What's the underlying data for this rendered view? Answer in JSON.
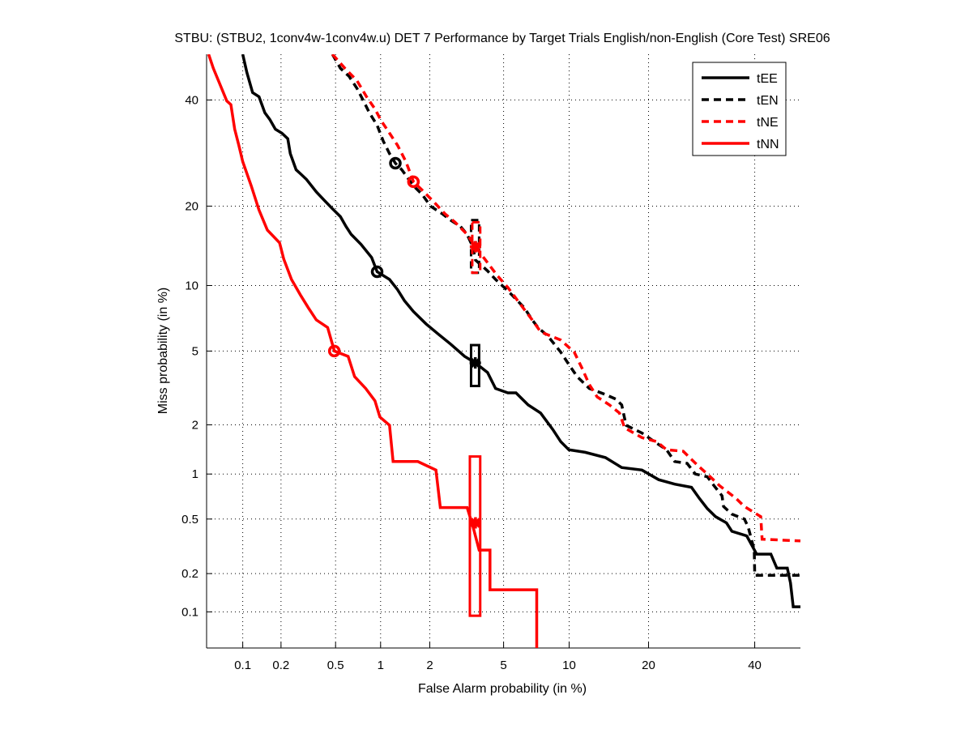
{
  "chart_data": {
    "type": "line",
    "scale": "normal-deviate (DET)",
    "title": "STBU: (STBU2, 1conv4w-1conv4w.u) DET 7 Performance by Target Trials English/non-English (Core Test) SRE06",
    "xlabel": "False Alarm probability (in %)",
    "ylabel": "Miss probability (in %)",
    "xlim": [
      0.05,
      50
    ],
    "ylim": [
      0.05,
      50
    ],
    "xticks": [
      0.1,
      0.2,
      0.5,
      1,
      2,
      5,
      10,
      20,
      40
    ],
    "xtick_labels": [
      "0.1",
      "0.2",
      "0.5",
      "1",
      "2",
      "5",
      "10",
      "20",
      "40"
    ],
    "yticks": [
      0.1,
      0.2,
      0.5,
      1,
      2,
      5,
      10,
      20,
      40
    ],
    "ytick_labels": [
      "0.1",
      "0.2",
      "0.5",
      "1",
      "2",
      "5",
      "10",
      "20",
      "40"
    ],
    "grid": true,
    "legend_position": "top-right",
    "series": [
      {
        "name": "tEE",
        "color": "#000000",
        "dashed": false,
        "points": [
          [
            0.1,
            50
          ],
          [
            0.108,
            46
          ],
          [
            0.12,
            41.6
          ],
          [
            0.135,
            40.7
          ],
          [
            0.15,
            37.3
          ],
          [
            0.164,
            35.9
          ],
          [
            0.181,
            33.9
          ],
          [
            0.203,
            33.1
          ],
          [
            0.225,
            32
          ],
          [
            0.235,
            29.1
          ],
          [
            0.26,
            26.1
          ],
          [
            0.28,
            25.4
          ],
          [
            0.31,
            24.4
          ],
          [
            0.365,
            22.3
          ],
          [
            0.417,
            20.9
          ],
          [
            0.475,
            19.6
          ],
          [
            0.54,
            18.4
          ],
          [
            0.59,
            17
          ],
          [
            0.64,
            15.9
          ],
          [
            0.745,
            14.6
          ],
          [
            0.875,
            13
          ],
          [
            0.95,
            11.4
          ],
          [
            1.14,
            10.6
          ],
          [
            1.28,
            9.6
          ],
          [
            1.41,
            8.6
          ],
          [
            1.6,
            7.7
          ],
          [
            1.9,
            6.76
          ],
          [
            2.25,
            6.03
          ],
          [
            2.63,
            5.41
          ],
          [
            3.14,
            4.7
          ],
          [
            3.58,
            4.36
          ],
          [
            4.15,
            3.89
          ],
          [
            4.56,
            3.2
          ],
          [
            5.25,
            3.03
          ],
          [
            5.75,
            3.03
          ],
          [
            6.57,
            2.6
          ],
          [
            7.5,
            2.34
          ],
          [
            8.5,
            1.88
          ],
          [
            9.2,
            1.59
          ],
          [
            9.97,
            1.42
          ],
          [
            11.65,
            1.37
          ],
          [
            14.0,
            1.27
          ],
          [
            16.1,
            1.1
          ],
          [
            19.0,
            1.06
          ],
          [
            21.6,
            0.92
          ],
          [
            24.3,
            0.86
          ],
          [
            27.3,
            0.82
          ],
          [
            28.8,
            0.69
          ],
          [
            30.3,
            0.59
          ],
          [
            31.9,
            0.52
          ],
          [
            34.1,
            0.47
          ],
          [
            35.2,
            0.41
          ],
          [
            38.3,
            0.38
          ],
          [
            39.5,
            0.32
          ],
          [
            40.4,
            0.28
          ],
          [
            43.5,
            0.28
          ],
          [
            44.8,
            0.22
          ],
          [
            47.1,
            0.22
          ],
          [
            47.8,
            0.17
          ],
          [
            48.4,
            0.11
          ],
          [
            50,
            0.11
          ]
        ],
        "circle": [
          0.95,
          11.4
        ],
        "star": [
          3.58,
          4.36
        ],
        "conf_box": {
          "x": [
            3.4,
            3.75
          ],
          "y": [
            3.3,
            5.35
          ]
        }
      },
      {
        "name": "tEN",
        "color": "#000000",
        "dashed": true,
        "points": [
          [
            0.475,
            50
          ],
          [
            0.54,
            46.9
          ],
          [
            0.62,
            45.1
          ],
          [
            0.7,
            42.5
          ],
          [
            0.774,
            39.8
          ],
          [
            0.845,
            37.3
          ],
          [
            0.95,
            34.7
          ],
          [
            1.04,
            31.5
          ],
          [
            1.14,
            29.1
          ],
          [
            1.24,
            27.3
          ],
          [
            1.36,
            26.1
          ],
          [
            1.6,
            23.3
          ],
          [
            1.8,
            21.9
          ],
          [
            2.02,
            20
          ],
          [
            2.37,
            18.8
          ],
          [
            2.63,
            17.9
          ],
          [
            2.98,
            17
          ],
          [
            3.24,
            15.9
          ],
          [
            3.47,
            14.3
          ],
          [
            3.59,
            12.7
          ],
          [
            4.15,
            11.5
          ],
          [
            4.56,
            10.6
          ],
          [
            5.04,
            9.8
          ],
          [
            5.5,
            9.1
          ],
          [
            6.3,
            8.0
          ],
          [
            6.86,
            7.05
          ],
          [
            7.3,
            6.5
          ],
          [
            8.1,
            5.9
          ],
          [
            9.2,
            4.94
          ],
          [
            9.97,
            4.28
          ],
          [
            10.8,
            3.7
          ],
          [
            12.1,
            3.2
          ],
          [
            14.0,
            2.97
          ],
          [
            15.3,
            2.8
          ],
          [
            16.1,
            2.6
          ],
          [
            16.7,
            1.99
          ],
          [
            19,
            1.79
          ],
          [
            20.9,
            1.59
          ],
          [
            22.9,
            1.42
          ],
          [
            24.3,
            1.2
          ],
          [
            26.5,
            1.17
          ],
          [
            28,
            1.0
          ],
          [
            30.3,
            0.96
          ],
          [
            31.6,
            0.84
          ],
          [
            33.2,
            0.72
          ],
          [
            33.5,
            0.61
          ],
          [
            35.2,
            0.54
          ],
          [
            37.8,
            0.5
          ],
          [
            38.6,
            0.44
          ],
          [
            39.9,
            0.3
          ],
          [
            40,
            0.194
          ],
          [
            50,
            0.194
          ]
        ],
        "circle": [
          1.24,
          27.3
        ],
        "star": [
          3.59,
          14.3
        ],
        "conf_box": {
          "x": [
            3.4,
            3.75
          ],
          "y": [
            11.3,
            17.9
          ]
        }
      },
      {
        "name": "tNE",
        "color": "#ff0000",
        "dashed": true,
        "points": [
          [
            0.475,
            50
          ],
          [
            0.58,
            46.9
          ],
          [
            0.7,
            44.2
          ],
          [
            0.81,
            40.7
          ],
          [
            0.92,
            38.1
          ],
          [
            1.01,
            35.6
          ],
          [
            1.14,
            33.1
          ],
          [
            1.28,
            30.7
          ],
          [
            1.44,
            27.6
          ],
          [
            1.6,
            24
          ],
          [
            1.8,
            22.6
          ],
          [
            2.12,
            20.6
          ],
          [
            2.45,
            18.8
          ],
          [
            2.78,
            17.6
          ],
          [
            3.24,
            15.9
          ],
          [
            3.59,
            14.3
          ],
          [
            4.15,
            12.4
          ],
          [
            4.65,
            11.0
          ],
          [
            5.25,
            9.8
          ],
          [
            6.0,
            8.35
          ],
          [
            6.86,
            7.05
          ],
          [
            7.5,
            6.2
          ],
          [
            9.2,
            5.66
          ],
          [
            10.5,
            4.94
          ],
          [
            11.3,
            4.1
          ],
          [
            12.1,
            3.36
          ],
          [
            13.0,
            2.88
          ],
          [
            14.5,
            2.6
          ],
          [
            15.8,
            2.34
          ],
          [
            16.5,
            1.92
          ],
          [
            19,
            1.68
          ],
          [
            21.3,
            1.59
          ],
          [
            22.9,
            1.42
          ],
          [
            25.8,
            1.39
          ],
          [
            28.5,
            1.13
          ],
          [
            30.3,
            1.0
          ],
          [
            32.7,
            0.84
          ],
          [
            36.1,
            0.69
          ],
          [
            37.8,
            0.61
          ],
          [
            41.3,
            0.52
          ],
          [
            41.6,
            0.36
          ],
          [
            50,
            0.35
          ]
        ],
        "circle": [
          1.6,
          24
        ],
        "star": [
          3.59,
          14.3
        ],
        "conf_box": {
          "x": [
            3.45,
            3.8
          ],
          "y": [
            11.3,
            17.6
          ]
        }
      },
      {
        "name": "tNN",
        "color": "#ff0000",
        "dashed": false,
        "points": [
          [
            0.052,
            50
          ],
          [
            0.057,
            46.9
          ],
          [
            0.063,
            44.2
          ],
          [
            0.074,
            39.8
          ],
          [
            0.08,
            39
          ],
          [
            0.086,
            33.9
          ],
          [
            0.093,
            30.7
          ],
          [
            0.1,
            27.6
          ],
          [
            0.117,
            23.3
          ],
          [
            0.135,
            19.4
          ],
          [
            0.157,
            16.5
          ],
          [
            0.195,
            14.8
          ],
          [
            0.21,
            12.8
          ],
          [
            0.24,
            10.6
          ],
          [
            0.28,
            9.1
          ],
          [
            0.32,
            8.0
          ],
          [
            0.365,
            7.05
          ],
          [
            0.44,
            6.5
          ],
          [
            0.49,
            5.0
          ],
          [
            0.61,
            4.7
          ],
          [
            0.675,
            3.7
          ],
          [
            0.8,
            3.2
          ],
          [
            0.92,
            2.74
          ],
          [
            0.99,
            2.22
          ],
          [
            1.14,
            1.99
          ],
          [
            1.2,
            1.2
          ],
          [
            1.7,
            1.2
          ],
          [
            2.17,
            1.06
          ],
          [
            2.3,
            0.6
          ],
          [
            3.24,
            0.6
          ],
          [
            3.47,
            0.45
          ],
          [
            3.75,
            0.3
          ],
          [
            4.27,
            0.3
          ],
          [
            4.27,
            0.15
          ],
          [
            7.2,
            0.15
          ],
          [
            7.2,
            0.05
          ]
        ],
        "circle": [
          0.49,
          5.0
        ],
        "star": [
          3.59,
          0.47
        ],
        "conf_box": {
          "x": [
            3.35,
            3.8
          ],
          "y": [
            0.093,
            1.29
          ]
        }
      }
    ]
  }
}
